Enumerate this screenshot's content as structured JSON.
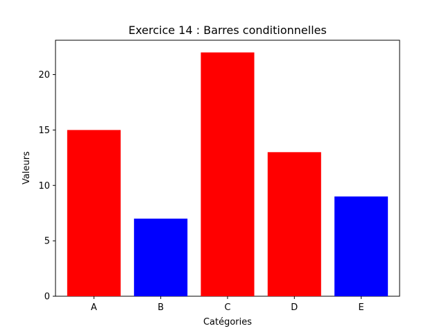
{
  "chart_data": {
    "type": "bar",
    "title": "Exercice 14 : Barres conditionnelles",
    "xlabel": "Catégories",
    "ylabel": "Valeurs",
    "categories": [
      "A",
      "B",
      "C",
      "D",
      "E"
    ],
    "values": [
      15,
      7,
      22,
      13,
      9
    ],
    "bar_colors": [
      "#ff0000",
      "#0000ff",
      "#ff0000",
      "#ff0000",
      "#0000ff"
    ],
    "ylim": [
      0,
      23.1
    ],
    "yticks": [
      0,
      5,
      10,
      15,
      20
    ],
    "ytick_labels": [
      "0",
      "5",
      "10",
      "15",
      "20"
    ],
    "grid": false,
    "legend": "none"
  }
}
